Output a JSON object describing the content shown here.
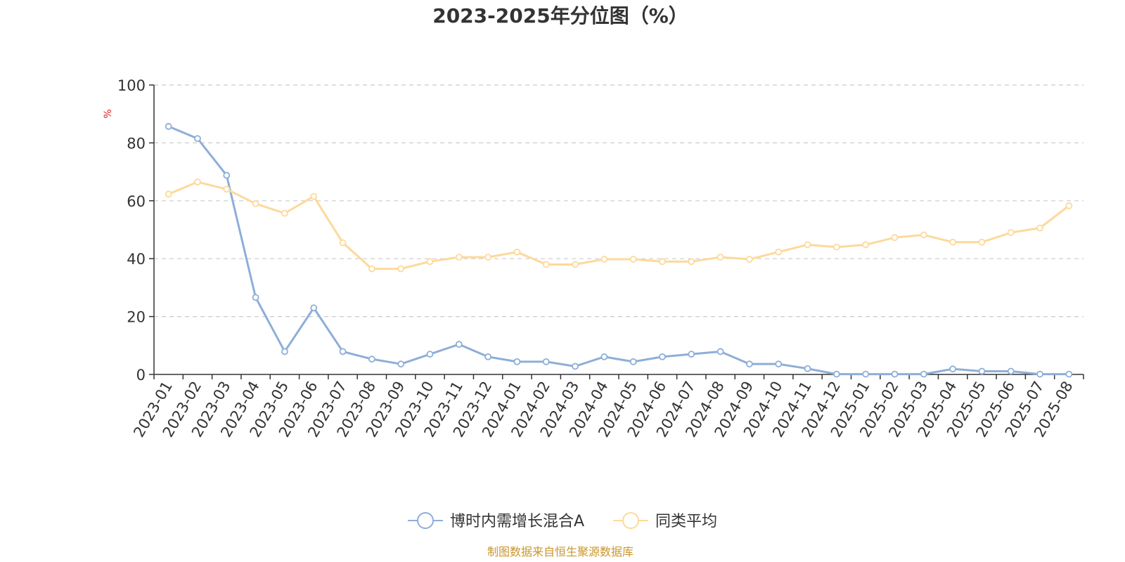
{
  "chart_data": {
    "type": "line",
    "title": "2023-2025年分位图（%）",
    "ylabel": "%",
    "ylim": [
      0,
      100
    ],
    "yticks": [
      "0",
      "20",
      "40",
      "60",
      "80",
      "100"
    ],
    "grid": true,
    "legend_position": "bottom",
    "categories": [
      "2023-01",
      "2023-02",
      "2023-03",
      "2023-04",
      "2023-05",
      "2023-06",
      "2023-07",
      "2023-08",
      "2023-09",
      "2023-10",
      "2023-11",
      "2023-12",
      "2024-01",
      "2024-02",
      "2024-03",
      "2024-04",
      "2024-05",
      "2024-06",
      "2024-07",
      "2024-08",
      "2024-09",
      "2024-10",
      "2024-11",
      "2024-12",
      "2025-01",
      "2025-02",
      "2025-03",
      "2025-04",
      "2025-05",
      "2025-06",
      "2025-07",
      "2025-08"
    ],
    "series": [
      {
        "name": "博时内需增长混合A",
        "color": "#8eaed8",
        "values": [
          85.7,
          81.5,
          68.8,
          26.6,
          7.9,
          23.0,
          7.9,
          5.3,
          3.6,
          7.0,
          10.4,
          6.1,
          4.4,
          4.4,
          2.8,
          6.1,
          4.4,
          6.1,
          7.0,
          7.9,
          3.6,
          3.6,
          2.0,
          0.1,
          0.1,
          0.1,
          0.1,
          1.9,
          1.1,
          1.1,
          0.1,
          0.1
        ]
      },
      {
        "name": "同类平均",
        "color": "#fdd99a",
        "values": [
          62.3,
          66.5,
          64.0,
          59.0,
          55.7,
          61.5,
          45.5,
          36.5,
          36.5,
          39.0,
          40.5,
          40.5,
          42.3,
          38.0,
          38.0,
          39.8,
          39.8,
          39.0,
          39.0,
          40.5,
          39.8,
          42.3,
          44.8,
          44.0,
          44.8,
          47.3,
          48.2,
          45.7,
          45.7,
          49.0,
          50.6,
          58.3
        ]
      }
    ]
  },
  "source_text": "制图数据来自恒生聚源数据库",
  "colors": {
    "axis": "#333333",
    "grid": "#cccccc",
    "ylabel": "#e02020",
    "source": "#c9962e"
  }
}
